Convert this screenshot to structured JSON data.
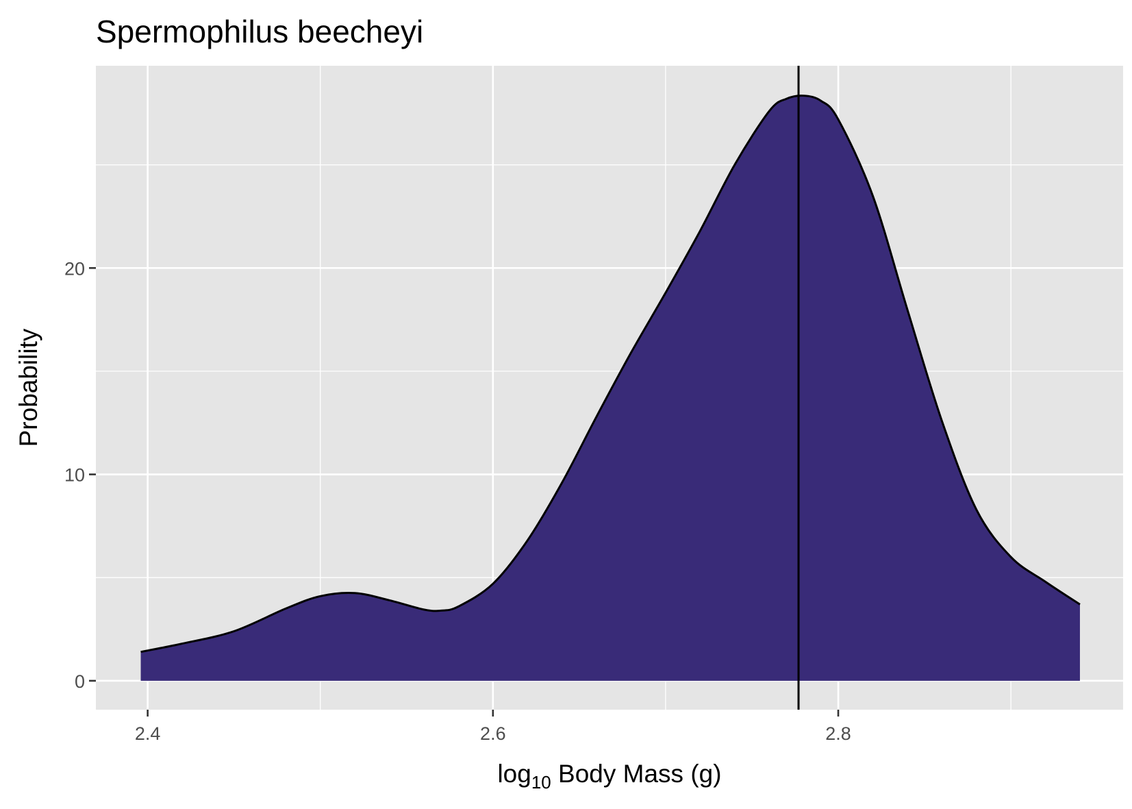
{
  "chart_data": {
    "type": "area",
    "title": "Spermophilus beecheyi",
    "xlabel": {
      "prefix": "log",
      "subscript": "10",
      "suffix": " Body Mass (g)"
    },
    "ylabel": "Probability",
    "xlim": [
      2.37,
      2.965
    ],
    "ylim": [
      -1.4,
      29.8
    ],
    "x_ticks": [
      {
        "value": 2.4,
        "label": "2.4"
      },
      {
        "value": 2.6,
        "label": "2.6"
      },
      {
        "value": 2.8,
        "label": "2.8"
      }
    ],
    "x_minor": [
      2.5,
      2.7,
      2.9
    ],
    "y_ticks": [
      {
        "value": 0,
        "label": "0"
      },
      {
        "value": 10,
        "label": "10"
      },
      {
        "value": 20,
        "label": "20"
      }
    ],
    "y_minor": [
      5,
      15,
      25
    ],
    "grid": true,
    "fill_color": "#392b78",
    "panel_color": "#e5e5e5",
    "series": [
      {
        "x": [
          2.396,
          2.42,
          2.45,
          2.48,
          2.5,
          2.52,
          2.54,
          2.56,
          2.57,
          2.58,
          2.6,
          2.62,
          2.64,
          2.66,
          2.68,
          2.7,
          2.72,
          2.74,
          2.76,
          2.77,
          2.78,
          2.79,
          2.8,
          2.82,
          2.84,
          2.86,
          2.88,
          2.9,
          2.92,
          2.94
        ],
        "y": [
          1.4,
          1.8,
          2.4,
          3.5,
          4.1,
          4.25,
          3.9,
          3.45,
          3.4,
          3.6,
          4.7,
          6.8,
          9.6,
          12.8,
          15.9,
          18.8,
          21.8,
          25.0,
          27.6,
          28.2,
          28.35,
          28.1,
          27.2,
          23.5,
          18.0,
          12.6,
          8.3,
          6.0,
          4.8,
          3.7
        ]
      }
    ],
    "vline": {
      "x": 2.777
    }
  }
}
